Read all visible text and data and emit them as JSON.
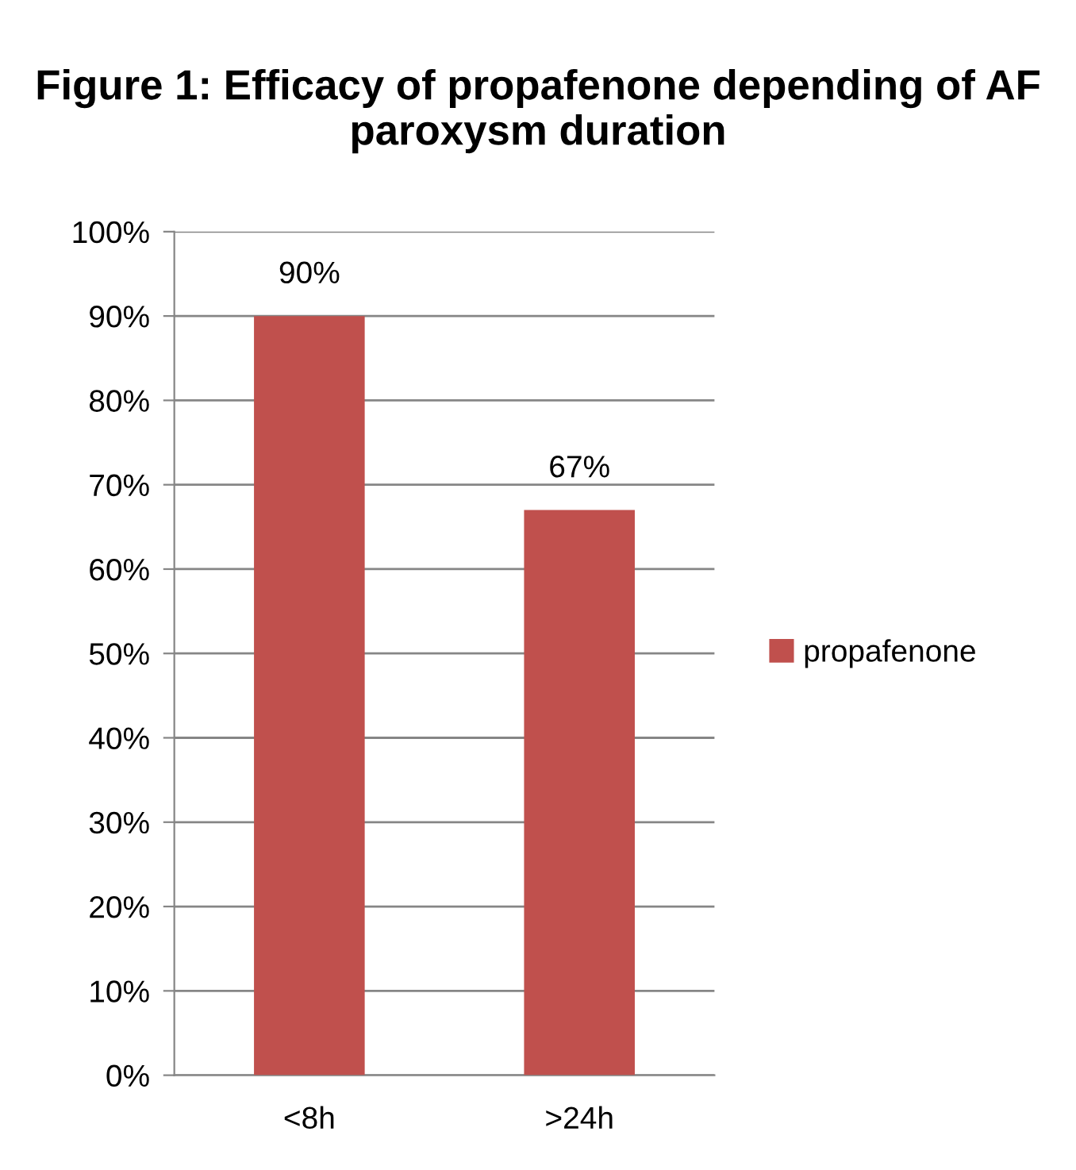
{
  "chart_data": {
    "type": "bar",
    "title": "Figure 1: Efficacy of propafenone depending of AF paroxysm duration",
    "categories": [
      "<8h",
      ">24h"
    ],
    "series": [
      {
        "name": "propafenone",
        "color": "#c0504d",
        "values": [
          90,
          67
        ],
        "value_labels": [
          "90%",
          "67%"
        ]
      }
    ],
    "ylim": [
      0,
      100
    ],
    "yticks": [
      {
        "value": 0,
        "label": "0%"
      },
      {
        "value": 10,
        "label": "10%"
      },
      {
        "value": 20,
        "label": "20%"
      },
      {
        "value": 30,
        "label": "30%"
      },
      {
        "value": 40,
        "label": "40%"
      },
      {
        "value": 50,
        "label": "50%"
      },
      {
        "value": 60,
        "label": "60%"
      },
      {
        "value": 70,
        "label": "70%"
      },
      {
        "value": 80,
        "label": "80%"
      },
      {
        "value": 90,
        "label": "90%"
      },
      {
        "value": 100,
        "label": "100%"
      }
    ],
    "grid": "y",
    "legend": "right"
  }
}
